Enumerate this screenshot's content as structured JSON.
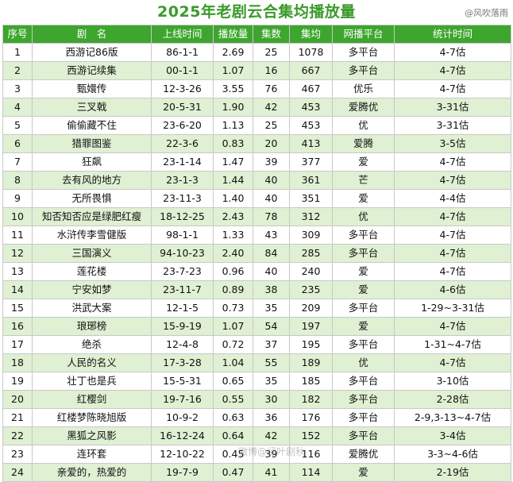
{
  "title": "2025年老剧云合集均播放量",
  "credit": "@风吹落雨",
  "watermark": "微博@绿叶剧秋",
  "columns": [
    "序号",
    "剧　名",
    "上线时间",
    "播放量",
    "集数",
    "集均",
    "网播平台",
    "统计时间"
  ],
  "rows": [
    [
      "1",
      "西游记86版",
      "86-1-1",
      "2.69",
      "25",
      "1078",
      "多平台",
      "4-7估"
    ],
    [
      "2",
      "西游记续集",
      "00-1-1",
      "1.07",
      "16",
      "667",
      "多平台",
      "4-7估"
    ],
    [
      "3",
      "甄嬛传",
      "12-3-26",
      "3.55",
      "76",
      "467",
      "优乐",
      "4-7估"
    ],
    [
      "4",
      "三叉戟",
      "20-5-31",
      "1.90",
      "42",
      "453",
      "爱腾优",
      "3-31估"
    ],
    [
      "5",
      "偷偷藏不住",
      "23-6-20",
      "1.13",
      "25",
      "453",
      "优",
      "3-31估"
    ],
    [
      "6",
      "猎罪图鉴",
      "22-3-6",
      "0.83",
      "20",
      "413",
      "爱腾",
      "3-5估"
    ],
    [
      "7",
      "狂飙",
      "23-1-14",
      "1.47",
      "39",
      "377",
      "爱",
      "4-7估"
    ],
    [
      "8",
      "去有风的地方",
      "23-1-3",
      "1.44",
      "40",
      "361",
      "芒",
      "4-7估"
    ],
    [
      "9",
      "无所畏惧",
      "23-11-3",
      "1.40",
      "40",
      "351",
      "爱",
      "4-4估"
    ],
    [
      "10",
      "知否知否应是绿肥红瘦",
      "18-12-25",
      "2.43",
      "78",
      "312",
      "优",
      "4-7估"
    ],
    [
      "11",
      "水浒传李雪健版",
      "98-1-1",
      "1.33",
      "43",
      "309",
      "多平台",
      "4-7估"
    ],
    [
      "12",
      "三国演义",
      "94-10-23",
      "2.40",
      "84",
      "285",
      "多平台",
      "4-7估"
    ],
    [
      "13",
      "莲花楼",
      "23-7-23",
      "0.96",
      "40",
      "240",
      "爱",
      "4-7估"
    ],
    [
      "14",
      "宁安如梦",
      "23-11-7",
      "0.89",
      "38",
      "235",
      "爱",
      "4-6估"
    ],
    [
      "15",
      "洪武大案",
      "12-1-5",
      "0.73",
      "35",
      "209",
      "多平台",
      "1-29~3-31估"
    ],
    [
      "16",
      "琅琊榜",
      "15-9-19",
      "1.07",
      "54",
      "197",
      "爱",
      "4-7估"
    ],
    [
      "17",
      "绝杀",
      "12-4-8",
      "0.72",
      "37",
      "195",
      "多平台",
      "1-31~4-7估"
    ],
    [
      "18",
      "人民的名义",
      "17-3-28",
      "1.04",
      "55",
      "189",
      "优",
      "4-7估"
    ],
    [
      "19",
      "壮丁也是兵",
      "15-5-31",
      "0.65",
      "35",
      "185",
      "多平台",
      "3-10估"
    ],
    [
      "20",
      "红樱剑",
      "19-7-16",
      "0.55",
      "30",
      "182",
      "多平台",
      "2-28估"
    ],
    [
      "21",
      "红楼梦陈晓旭版",
      "10-9-2",
      "0.63",
      "36",
      "176",
      "多平台",
      "2-9,3-13~4-7估"
    ],
    [
      "22",
      "黑狐之风影",
      "16-12-24",
      "0.64",
      "42",
      "152",
      "多平台",
      "3-4估"
    ],
    [
      "23",
      "连环套",
      "12-10-22",
      "0.45",
      "39",
      "116",
      "爱腾优",
      "3-3~4-6估"
    ],
    [
      "24",
      "亲爱的，热爱的",
      "19-7-9",
      "0.47",
      "41",
      "114",
      "爱",
      "2-19估"
    ]
  ]
}
